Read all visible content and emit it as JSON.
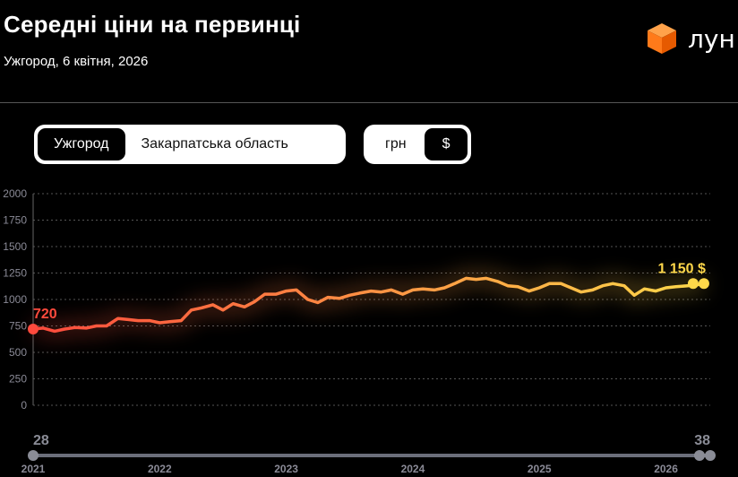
{
  "header": {
    "title": "Середні ціни на первинці",
    "subtitle": "Ужгород, 6 квітня, 2026",
    "logo_text": "лун"
  },
  "location_toggle": {
    "options": [
      "Ужгород",
      "Закарпатська область"
    ],
    "selected": "Ужгород"
  },
  "currency_toggle": {
    "options": [
      "грн",
      "$"
    ],
    "selected": "$"
  },
  "range_slider": {
    "start_label": "28",
    "end_label": "38"
  },
  "colors": {
    "line_start": "#ff4a3d",
    "line_end": "#ffd84a",
    "grid": "#555555",
    "brand_orange": "#ff7a1a"
  },
  "chart_data": {
    "type": "line",
    "title": "",
    "xlabel": "",
    "ylabel": "",
    "ylim": [
      0,
      2000
    ],
    "yticks": [
      "2000",
      "1750",
      "1500",
      "1250",
      "1000",
      "750",
      "500",
      "250",
      "0"
    ],
    "xticks": [
      "2021",
      "2022",
      "2023",
      "2024",
      "2025",
      "2026"
    ],
    "x_range": [
      2021.0,
      2026.35
    ],
    "start_label": "720",
    "end_label": "1 150 $",
    "series": [
      {
        "x": [
          2021.0,
          2021.08,
          2021.17,
          2021.25,
          2021.33,
          2021.42,
          2021.5,
          2021.58,
          2021.67,
          2021.75,
          2021.83,
          2021.92,
          2022.0,
          2022.08,
          2022.17,
          2022.25,
          2022.33,
          2022.42,
          2022.5,
          2022.58,
          2022.67,
          2022.75,
          2022.83,
          2022.92,
          2023.0,
          2023.08,
          2023.17,
          2023.25,
          2023.33,
          2023.42,
          2023.5,
          2023.58,
          2023.67,
          2023.75,
          2023.83,
          2023.92,
          2024.0,
          2024.08,
          2024.17,
          2024.25,
          2024.33,
          2024.42,
          2024.5,
          2024.58,
          2024.67,
          2024.75,
          2024.83,
          2024.92,
          2025.0,
          2025.08,
          2025.17,
          2025.25,
          2025.33,
          2025.42,
          2025.5,
          2025.58,
          2025.67,
          2025.75,
          2025.83,
          2025.92,
          2026.0,
          2026.08,
          2026.17,
          2026.25,
          2026.3
        ],
        "values": [
          720,
          730,
          700,
          720,
          735,
          730,
          750,
          750,
          820,
          810,
          800,
          800,
          780,
          790,
          800,
          900,
          920,
          950,
          900,
          960,
          930,
          980,
          1050,
          1050,
          1080,
          1090,
          1000,
          970,
          1020,
          1010,
          1040,
          1060,
          1080,
          1070,
          1090,
          1050,
          1090,
          1100,
          1090,
          1110,
          1150,
          1200,
          1190,
          1200,
          1170,
          1130,
          1120,
          1080,
          1110,
          1150,
          1150,
          1110,
          1070,
          1090,
          1130,
          1150,
          1130,
          1040,
          1100,
          1080,
          1110,
          1120,
          1130,
          1140,
          1150
        ]
      }
    ]
  }
}
